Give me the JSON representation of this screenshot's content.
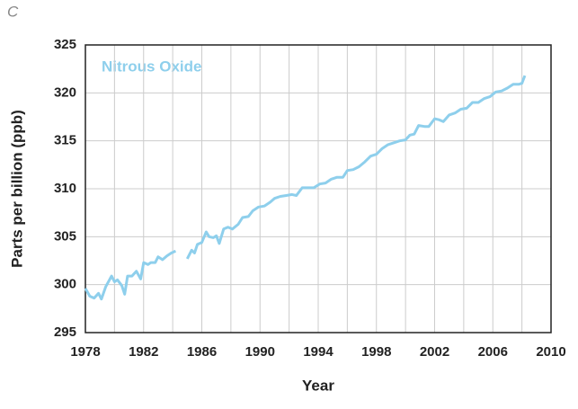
{
  "chart_data": {
    "type": "line",
    "panel_label": "C",
    "title": "Nitrous Oxide",
    "xlabel": "Year",
    "ylabel": "Parts per billion (ppb)",
    "xlim": [
      1978,
      2010
    ],
    "ylim": [
      295,
      325
    ],
    "xticks": [
      1978,
      1982,
      1986,
      1990,
      1994,
      1998,
      2002,
      2006,
      2010
    ],
    "xgrid": [
      1980,
      1984,
      1988,
      1992,
      1996,
      2000,
      2004,
      2008
    ],
    "yticks": [
      295,
      300,
      305,
      310,
      315,
      320,
      325
    ],
    "grid": true,
    "series": [
      {
        "name": "Nitrous Oxide",
        "color": "#8ecfec",
        "x": [
          1978.0,
          1978.3,
          1978.6,
          1978.9,
          1979.1,
          1979.4,
          1979.8,
          1980.0,
          1980.2,
          1980.5,
          1980.7,
          1980.9,
          1981.2,
          1981.5,
          1981.8,
          1982.0,
          1982.3,
          1982.5,
          1982.8,
          1983.0,
          1983.3,
          1983.6,
          1983.9,
          1984.2,
          1984.6,
          1985.0,
          1985.3,
          1985.5,
          1985.7,
          1986.0,
          1986.3,
          1986.5,
          1986.8,
          1987.0,
          1987.2,
          1987.5,
          1987.8,
          1988.1,
          1988.5,
          1988.8,
          1989.2,
          1989.5,
          1989.9,
          1990.3,
          1990.7,
          1991.0,
          1991.4,
          1991.8,
          1992.2,
          1992.5,
          1992.9,
          1993.3,
          1993.7,
          1994.1,
          1994.5,
          1994.9,
          1995.3,
          1995.7,
          1996.0,
          1996.4,
          1996.8,
          1997.2,
          1997.6,
          1998.0,
          1998.4,
          1998.8,
          1999.2,
          1999.6,
          2000.0,
          2000.3,
          2000.6,
          2000.9,
          2001.3,
          2001.6,
          2002.0,
          2002.3,
          2002.6,
          2003.0,
          2003.4,
          2003.8,
          2004.2,
          2004.6,
          2005.0,
          2005.4,
          2005.8,
          2006.2,
          2006.6,
          2007.0,
          2007.4,
          2007.8,
          2008.0,
          2008.2
        ],
        "values": [
          299.6,
          298.8,
          298.6,
          299.1,
          298.5,
          299.8,
          300.9,
          300.3,
          300.5,
          299.9,
          299.0,
          300.9,
          300.9,
          301.4,
          300.6,
          302.3,
          302.1,
          302.3,
          302.3,
          302.9,
          302.6,
          303.0,
          303.3,
          303.5,
          null,
          302.7,
          303.6,
          303.3,
          304.2,
          304.4,
          305.5,
          305.0,
          304.9,
          305.1,
          304.3,
          305.8,
          306.0,
          305.8,
          306.3,
          307.0,
          307.1,
          307.7,
          308.1,
          308.2,
          308.6,
          309.0,
          309.2,
          309.3,
          309.4,
          309.3,
          310.1,
          310.1,
          310.1,
          310.5,
          310.6,
          311.0,
          311.2,
          311.2,
          311.9,
          312.0,
          312.3,
          312.8,
          313.4,
          313.6,
          314.2,
          314.6,
          314.8,
          315.0,
          315.1,
          315.6,
          315.7,
          316.6,
          316.5,
          316.5,
          317.3,
          317.2,
          317.0,
          317.7,
          317.9,
          318.3,
          318.4,
          319.0,
          319.0,
          319.4,
          319.6,
          320.1,
          320.2,
          320.5,
          320.9,
          320.9,
          321.0,
          321.8
        ]
      }
    ]
  }
}
